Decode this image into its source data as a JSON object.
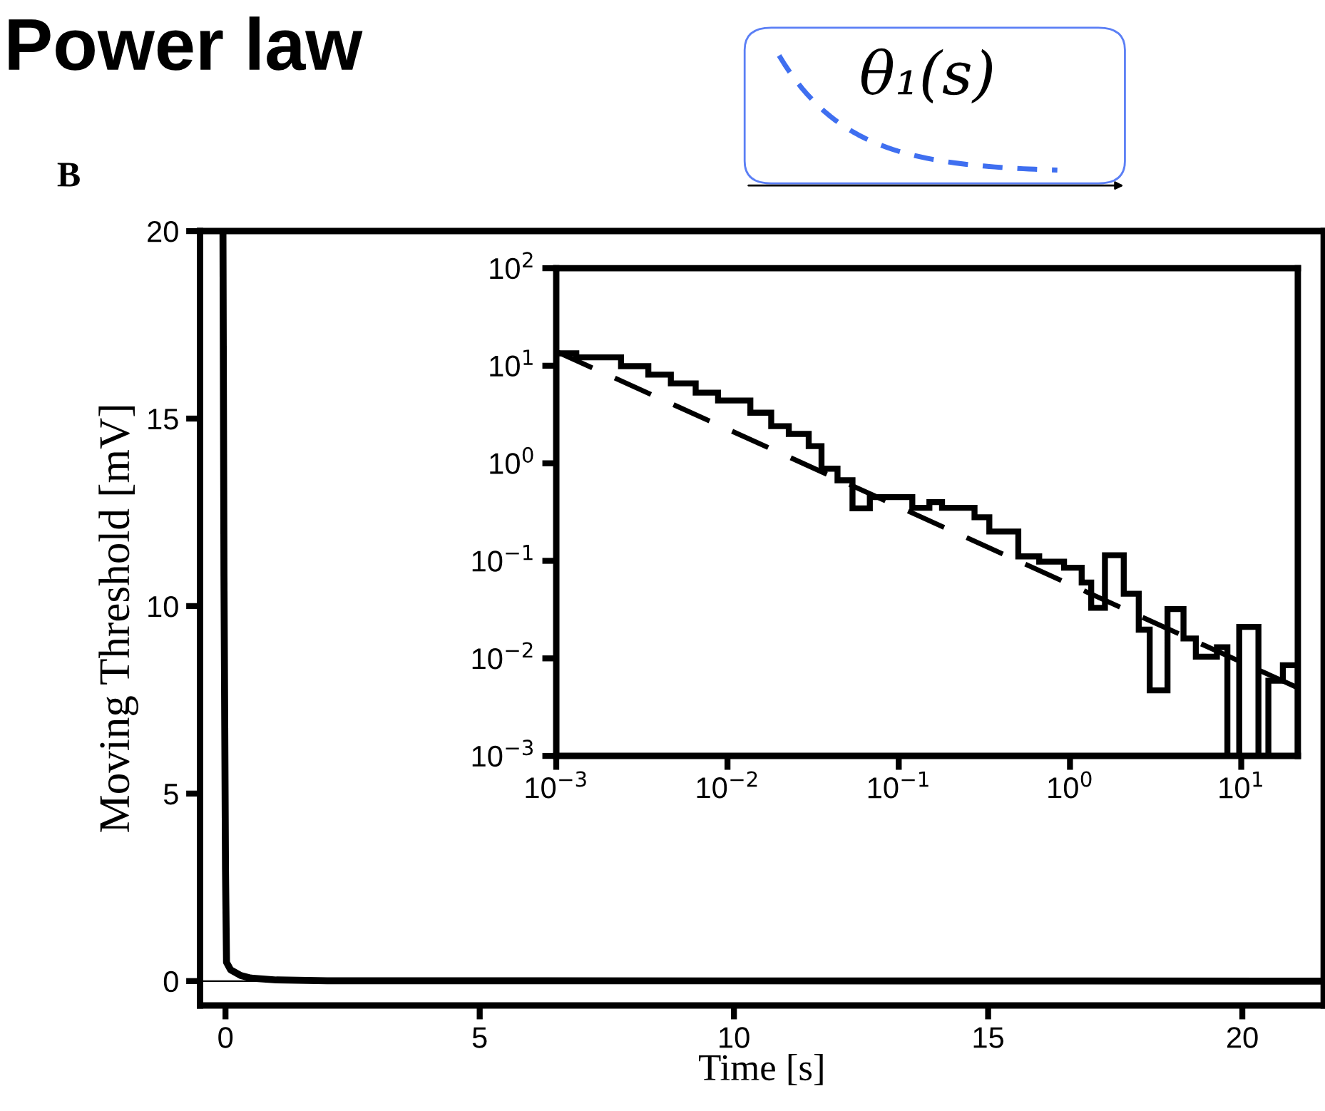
{
  "chart_data": [
    {
      "type": "line",
      "title": "Power law",
      "xlabel": "Time [s]",
      "ylabel": "Moving Threshold [mV]",
      "annotations": [
        "B",
        "θ₁(s)"
      ],
      "x": [
        -0.05,
        -0.03,
        0,
        0.02,
        0.1,
        0.3,
        0.5,
        1,
        2,
        21.6
      ],
      "series": [
        {
          "color": "#000000",
          "values": [
            20,
            10.8,
            3,
            0.5,
            0.3,
            0.15,
            0.08,
            0.03,
            0.01,
            0
          ]
        }
      ],
      "xlim": [
        -0.5,
        21.6
      ],
      "ylim": [
        -0.65,
        20
      ],
      "xticks": [
        0,
        5,
        10,
        15,
        20
      ],
      "yticks": [
        0,
        5,
        10,
        15,
        20
      ],
      "ref_lines": [
        {
          "axis": "y",
          "value": 0,
          "color": "#000000"
        }
      ],
      "grid": false
    },
    {
      "type": "histogram",
      "log": "xy",
      "series": [
        {
          "type": "histogram",
          "color": "#000000",
          "bins": [
            0.001,
            0.00131,
            0.00239,
            0.00345,
            0.00467,
            0.00652,
            0.00881,
            0.0136,
            0.018,
            0.0228,
            0.0298,
            0.0354,
            0.0439,
            0.0537,
            0.0678,
            0.12,
            0.151,
            0.179,
            0.277,
            0.338,
            0.499,
            0.661,
            0.923,
            1.17,
            1.33,
            1.6,
            2.06,
            2.52,
            2.92,
            3.71,
            4.6,
            5.43,
            7.21,
            8.3,
            9.73,
            12.6,
            14.4,
            17.5,
            21.4
          ],
          "values": [
            13.4,
            12.2,
            9.9,
            8.1,
            6.6,
            5.3,
            4.4,
            3.3,
            2.4,
            2.0,
            1.5,
            0.88,
            0.67,
            0.345,
            0.45,
            0.35,
            0.4,
            0.35,
            0.28,
            0.2,
            0.111,
            0.098,
            0.085,
            0.06,
            0.033,
            0.114,
            0.046,
            0.0197,
            0.0047,
            0.032,
            0.016,
            0.0104,
            0.013,
            0.001,
            0.021,
            0.001,
            0.0059,
            0.0085
          ]
        },
        {
          "type": "line",
          "color": "#000000",
          "line_style": "dashed",
          "x": [
            0.001,
            21.4
          ],
          "values": [
            14,
            0.005
          ]
        }
      ],
      "xlim": [
        0.001,
        21.4
      ],
      "ylim": [
        0.001,
        100
      ],
      "xticks": [
        {
          "value": 0.001,
          "label": "10$^{−3}$"
        },
        {
          "value": 0.01,
          "label": "10$^{−2}$"
        },
        {
          "value": 0.1,
          "label": "10$^{−1}$"
        },
        {
          "value": 1,
          "label": "10$^{0}$"
        },
        {
          "value": 10,
          "label": "10$^{1}$"
        }
      ],
      "yticks": [
        {
          "value": 0.001,
          "label": "10$^{−3}$"
        },
        {
          "value": 0.01,
          "label": "10$^{−2}$"
        },
        {
          "value": 0.1,
          "label": "10$^{−1}$"
        },
        {
          "value": 1,
          "label": "10$^{0}$"
        },
        {
          "value": 10,
          "label": "10$^{1}$"
        },
        {
          "value": 100,
          "label": "10$^{2}$"
        }
      ],
      "grid": false
    }
  ]
}
